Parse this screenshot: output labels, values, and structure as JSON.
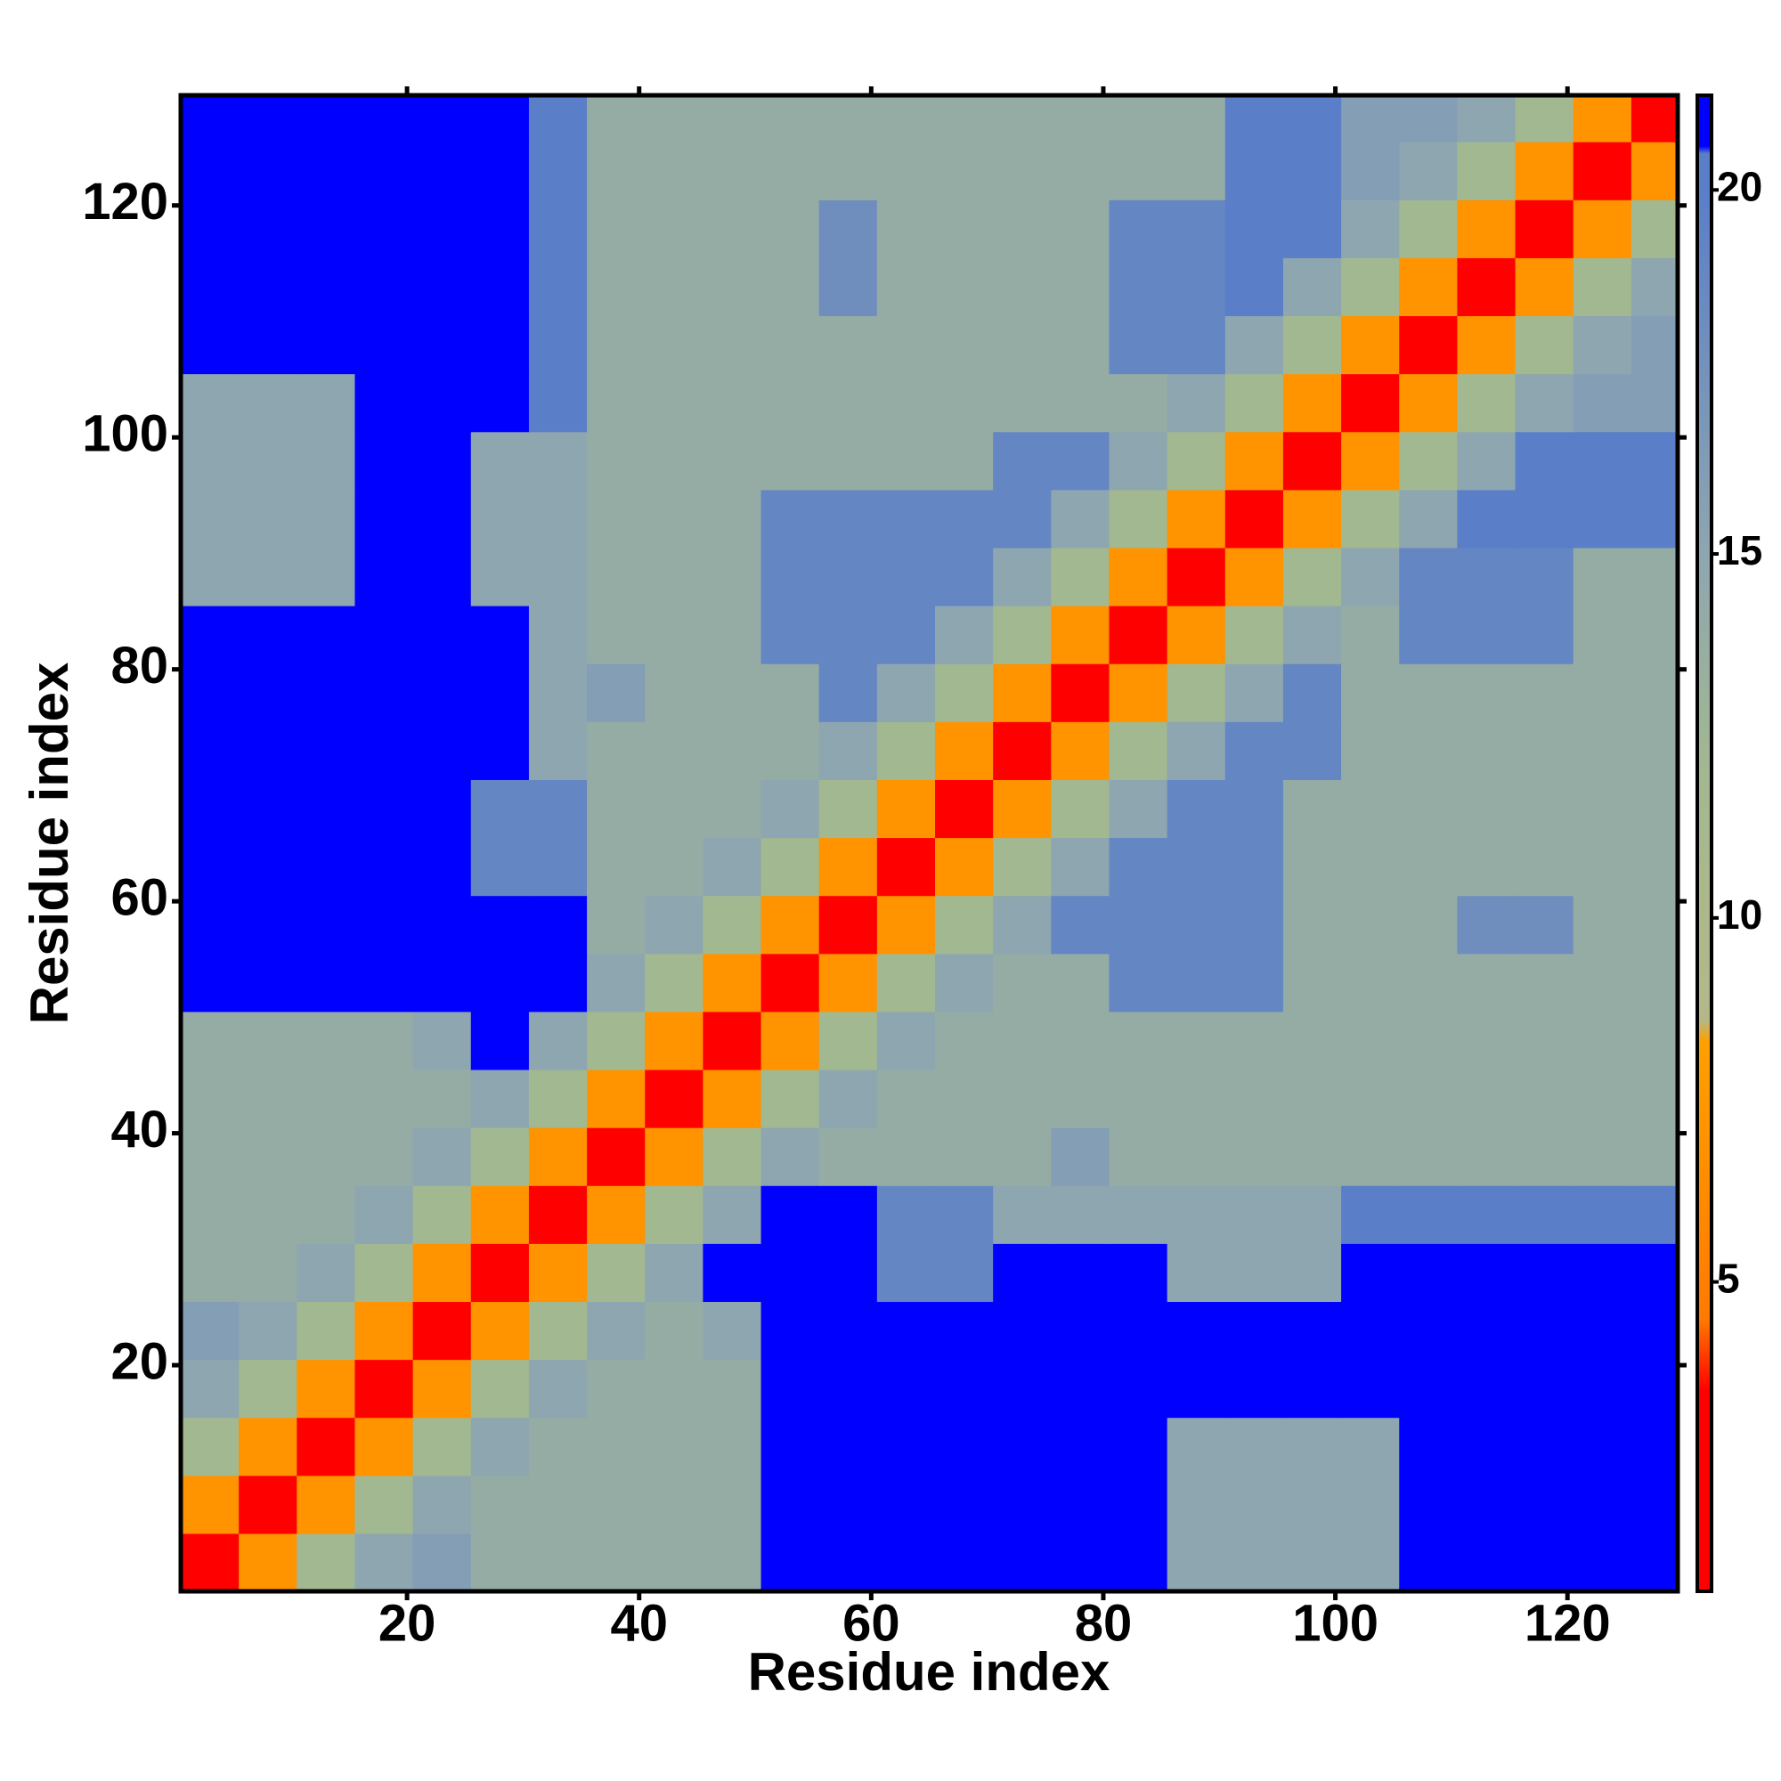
{
  "chart_data": {
    "type": "heatmap",
    "xlabel": "Residue index",
    "ylabel": "Residue index",
    "xlim": [
      0.5,
      129.5
    ],
    "ylim": [
      0.5,
      129.5
    ],
    "xticks": [
      20,
      40,
      60,
      80,
      100,
      120
    ],
    "yticks": [
      20,
      40,
      60,
      80,
      100,
      120
    ],
    "xbins": [
      0.5,
      5.5,
      10.5,
      15.5,
      20.5,
      25.5,
      30.5,
      35.5,
      40.5,
      45.5,
      50.5,
      55.5,
      60.5,
      65.5,
      70.5,
      75.5,
      80.5,
      85.5,
      90.5,
      95.5,
      100.5,
      105.5,
      110.5,
      115.5,
      120.5,
      125.5,
      129.5
    ],
    "ybins": [
      0.5,
      5.5,
      10.5,
      15.5,
      20.5,
      25.5,
      30.5,
      35.5,
      40.5,
      45.5,
      50.5,
      55.5,
      60.5,
      65.5,
      70.5,
      75.5,
      80.5,
      85.5,
      90.5,
      95.5,
      100.5,
      105.5,
      110.5,
      115.5,
      120.5,
      125.5,
      129.5
    ],
    "z": [
      [
        3,
        7,
        12,
        15,
        16,
        14,
        14,
        14,
        14,
        14,
        21,
        21,
        21,
        21,
        21,
        21,
        21,
        15,
        15,
        15,
        15,
        21,
        21,
        21,
        21,
        21
      ],
      [
        7,
        3,
        7,
        12,
        15,
        14,
        14,
        14,
        14,
        14,
        21,
        21,
        21,
        21,
        21,
        21,
        21,
        15,
        15,
        15,
        15,
        21,
        21,
        21,
        21,
        21
      ],
      [
        12,
        7,
        3,
        7,
        12,
        15,
        14,
        14,
        14,
        14,
        21,
        21,
        21,
        21,
        21,
        21,
        21,
        15,
        15,
        15,
        15,
        21,
        21,
        21,
        21,
        21
      ],
      [
        15,
        12,
        7,
        3,
        7,
        12,
        15,
        14,
        14,
        14,
        21,
        21,
        21,
        21,
        21,
        21,
        21,
        21,
        21,
        21,
        21,
        21,
        21,
        21,
        21,
        21
      ],
      [
        16,
        15,
        12,
        7,
        3,
        7,
        12,
        15,
        14,
        15,
        21,
        21,
        21,
        21,
        21,
        21,
        21,
        21,
        21,
        21,
        21,
        21,
        21,
        21,
        21,
        21
      ],
      [
        14,
        14,
        15,
        12,
        7,
        3,
        7,
        12,
        15,
        21,
        21,
        21,
        19,
        19,
        21,
        21,
        21,
        15,
        15,
        15,
        21,
        21,
        21,
        21,
        21,
        21
      ],
      [
        14,
        14,
        14,
        15,
        12,
        7,
        3,
        7,
        12,
        15,
        21,
        21,
        19,
        19,
        15,
        15,
        15,
        15,
        15,
        15,
        20,
        20,
        20,
        20,
        20,
        20
      ],
      [
        14,
        14,
        14,
        14,
        15,
        12,
        7,
        3,
        7,
        12,
        15,
        14,
        14,
        14,
        14,
        16,
        14,
        14,
        14,
        14,
        14,
        14,
        14,
        14,
        14,
        14
      ],
      [
        14,
        14,
        14,
        14,
        14,
        15,
        12,
        7,
        3,
        7,
        12,
        15,
        14,
        14,
        14,
        14,
        14,
        14,
        14,
        14,
        14,
        14,
        14,
        14,
        14,
        14
      ],
      [
        14,
        14,
        14,
        14,
        15,
        21,
        15,
        12,
        7,
        3,
        7,
        12,
        15,
        14,
        14,
        14,
        14,
        14,
        14,
        14,
        14,
        14,
        14,
        14,
        14,
        14
      ],
      [
        21,
        21,
        21,
        21,
        21,
        21,
        21,
        15,
        12,
        7,
        3,
        7,
        12,
        15,
        14,
        14,
        19,
        19,
        19,
        14,
        14,
        14,
        14,
        14,
        14,
        14
      ],
      [
        21,
        21,
        21,
        21,
        21,
        21,
        21,
        14,
        15,
        12,
        7,
        3,
        7,
        12,
        15,
        19,
        19,
        19,
        19,
        14,
        14,
        14,
        18,
        18,
        14,
        14
      ],
      [
        21,
        21,
        21,
        21,
        21,
        19,
        19,
        14,
        14,
        15,
        12,
        7,
        3,
        7,
        12,
        15,
        19,
        19,
        19,
        14,
        14,
        14,
        14,
        14,
        14,
        14
      ],
      [
        21,
        21,
        21,
        21,
        21,
        19,
        19,
        14,
        14,
        14,
        15,
        12,
        7,
        3,
        7,
        12,
        15,
        19,
        19,
        14,
        14,
        14,
        14,
        14,
        14,
        14
      ],
      [
        21,
        21,
        21,
        21,
        21,
        21,
        15,
        14,
        14,
        14,
        14,
        15,
        12,
        7,
        3,
        7,
        12,
        15,
        19,
        19,
        14,
        14,
        14,
        14,
        14,
        14
      ],
      [
        21,
        21,
        21,
        21,
        21,
        21,
        15,
        16,
        14,
        14,
        14,
        19,
        15,
        12,
        7,
        3,
        7,
        12,
        15,
        19,
        14,
        14,
        14,
        14,
        14,
        14
      ],
      [
        21,
        21,
        21,
        21,
        21,
        21,
        15,
        14,
        14,
        14,
        19,
        19,
        19,
        15,
        12,
        7,
        3,
        7,
        12,
        15,
        14,
        19,
        19,
        19,
        14,
        14
      ],
      [
        15,
        15,
        15,
        21,
        21,
        15,
        15,
        14,
        14,
        14,
        19,
        19,
        19,
        19,
        15,
        12,
        7,
        3,
        7,
        12,
        15,
        19,
        19,
        19,
        14,
        14
      ],
      [
        15,
        15,
        15,
        21,
        21,
        15,
        15,
        14,
        14,
        14,
        19,
        19,
        19,
        19,
        19,
        15,
        12,
        7,
        3,
        7,
        12,
        15,
        20,
        20,
        20,
        20
      ],
      [
        15,
        15,
        15,
        21,
        21,
        15,
        15,
        14,
        14,
        14,
        14,
        14,
        14,
        14,
        19,
        19,
        15,
        12,
        7,
        3,
        7,
        12,
        15,
        20,
        20,
        20
      ],
      [
        15,
        15,
        15,
        21,
        21,
        21,
        20,
        14,
        14,
        14,
        14,
        14,
        14,
        14,
        14,
        14,
        14,
        15,
        12,
        7,
        3,
        7,
        12,
        15,
        16,
        16
      ],
      [
        21,
        21,
        21,
        21,
        21,
        21,
        20,
        14,
        14,
        14,
        14,
        14,
        14,
        14,
        14,
        14,
        19,
        19,
        15,
        12,
        7,
        3,
        7,
        12,
        15,
        16
      ],
      [
        21,
        21,
        21,
        21,
        21,
        21,
        20,
        14,
        14,
        14,
        14,
        18,
        14,
        14,
        14,
        14,
        19,
        19,
        20,
        15,
        12,
        7,
        3,
        7,
        12,
        15
      ],
      [
        21,
        21,
        21,
        21,
        21,
        21,
        20,
        14,
        14,
        14,
        14,
        18,
        14,
        14,
        14,
        14,
        19,
        19,
        20,
        20,
        15,
        12,
        7,
        3,
        7,
        12
      ],
      [
        21,
        21,
        21,
        21,
        21,
        21,
        20,
        14,
        14,
        14,
        14,
        14,
        14,
        14,
        14,
        14,
        14,
        14,
        20,
        20,
        16,
        15,
        12,
        7,
        3,
        7
      ],
      [
        21,
        21,
        21,
        21,
        21,
        21,
        20,
        14,
        14,
        14,
        14,
        14,
        14,
        14,
        14,
        14,
        14,
        14,
        20,
        20,
        16,
        16,
        15,
        12,
        7,
        3
      ]
    ],
    "zlim": [
      0.75,
      21.3
    ],
    "zticks": [
      5,
      10,
      15,
      20
    ],
    "colorscale": [
      [
        0.75,
        "#ff0000"
      ],
      [
        3.5,
        "#ff0000"
      ],
      [
        4.5,
        "#ff7a00"
      ],
      [
        8.3,
        "#ffa000"
      ],
      [
        8.6,
        "#b4b888"
      ],
      [
        12,
        "#a2b890"
      ],
      [
        15,
        "#8ea6b0"
      ],
      [
        20,
        "#5a7ec8"
      ],
      [
        20.5,
        "#5a7ec8"
      ],
      [
        20.6,
        "#0000ff"
      ],
      [
        21.3,
        "#0000ff"
      ]
    ]
  }
}
